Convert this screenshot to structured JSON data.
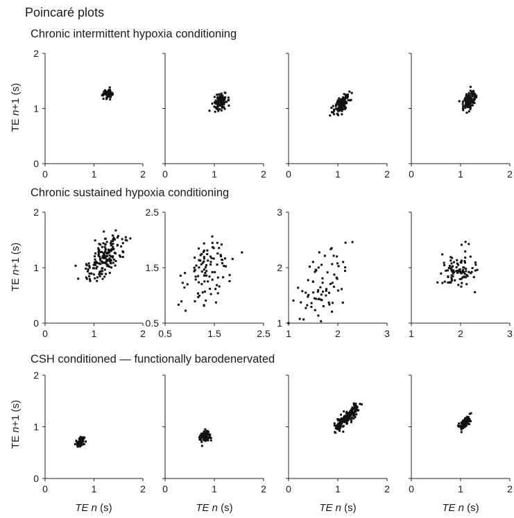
{
  "figure": {
    "title": "Poincaré plots",
    "rows": [
      {
        "title": "Chronic intermittent hypoxia conditioning"
      },
      {
        "title": "Chronic sustained hypoxia conditioning"
      },
      {
        "title": "CSH conditioned — functionally barodenervated"
      }
    ],
    "ylabel": {
      "pre": "TE ",
      "var": "n",
      "post": "+1 (s)"
    },
    "xlabel": {
      "pre": "",
      "var": "TE",
      "mid": " ",
      "var2": "n",
      "post": " (s)"
    }
  },
  "chart_data": [
    {
      "row": 0,
      "col": 0,
      "type": "scatter",
      "xlim": [
        0,
        2
      ],
      "ylim": [
        0,
        2
      ],
      "xticks": [
        "0",
        "1",
        "2"
      ],
      "yticks": [
        "0",
        "1",
        "2"
      ],
      "n_points": 60,
      "cx": 1.28,
      "cy": 1.27,
      "sx": 0.05,
      "sy": 0.05,
      "r": 0.3
    },
    {
      "row": 0,
      "col": 1,
      "type": "scatter",
      "xlim": [
        0,
        2
      ],
      "ylim": [
        0,
        2
      ],
      "xticks": [
        "0",
        "1",
        "2"
      ],
      "yticks": [],
      "n_points": 110,
      "cx": 1.12,
      "cy": 1.12,
      "sx": 0.07,
      "sy": 0.07,
      "r": 0.3
    },
    {
      "row": 0,
      "col": 2,
      "type": "scatter",
      "xlim": [
        0,
        2
      ],
      "ylim": [
        0,
        2
      ],
      "xticks": [
        "0",
        "1",
        "2"
      ],
      "yticks": [],
      "n_points": 110,
      "cx": 1.07,
      "cy": 1.08,
      "sx": 0.08,
      "sy": 0.09,
      "r": 0.6
    },
    {
      "row": 0,
      "col": 3,
      "type": "scatter",
      "xlim": [
        0,
        2
      ],
      "ylim": [
        0,
        2
      ],
      "xticks": [
        "0",
        "1",
        "2"
      ],
      "yticks": [],
      "n_points": 120,
      "cx": 1.18,
      "cy": 1.17,
      "sx": 0.07,
      "sy": 0.09,
      "r": 0.4
    },
    {
      "row": 1,
      "col": 0,
      "type": "scatter",
      "xlim": [
        0,
        2
      ],
      "ylim": [
        0,
        2
      ],
      "xticks": [
        "0",
        "1",
        "2"
      ],
      "yticks": [
        "0",
        "1",
        "2"
      ],
      "n_points": 170,
      "cx": 1.22,
      "cy": 1.18,
      "sx": 0.2,
      "sy": 0.2,
      "r": 0.55
    },
    {
      "row": 1,
      "col": 1,
      "type": "scatter",
      "xlim": [
        0.5,
        2.5
      ],
      "ylim": [
        0.5,
        2.5
      ],
      "xticks": [
        "0.5",
        "1.5",
        "2.5"
      ],
      "yticks": [
        "0.5",
        "1.5",
        "2.5"
      ],
      "n_points": 95,
      "cx": 1.35,
      "cy": 1.45,
      "sx": 0.25,
      "sy": 0.3,
      "r": 0.35
    },
    {
      "row": 1,
      "col": 2,
      "type": "scatter",
      "xlim": [
        1,
        3
      ],
      "ylim": [
        1,
        3
      ],
      "xticks": [
        "1",
        "2",
        "3"
      ],
      "yticks": [
        "1",
        "2",
        "3"
      ],
      "n_points": 75,
      "cx": 1.7,
      "cy": 1.7,
      "sx": 0.3,
      "sy": 0.32,
      "r": 0.5
    },
    {
      "row": 1,
      "col": 3,
      "type": "scatter",
      "xlim": [
        1,
        3
      ],
      "ylim": [
        1,
        3
      ],
      "xticks": [
        "1",
        "2",
        "3"
      ],
      "yticks": [],
      "n_points": 95,
      "cx": 1.95,
      "cy": 1.95,
      "sx": 0.17,
      "sy": 0.17,
      "r": 0.1
    },
    {
      "row": 2,
      "col": 0,
      "type": "scatter",
      "xlim": [
        0,
        2
      ],
      "ylim": [
        0,
        2
      ],
      "xticks": [
        "0",
        "1",
        "2"
      ],
      "yticks": [
        "0",
        "1",
        "2"
      ],
      "n_points": 55,
      "cx": 0.73,
      "cy": 0.72,
      "sx": 0.04,
      "sy": 0.05,
      "r": 0.3
    },
    {
      "row": 2,
      "col": 1,
      "type": "scatter",
      "xlim": [
        0,
        2
      ],
      "ylim": [
        0,
        2
      ],
      "xticks": [
        "0",
        "1",
        "2"
      ],
      "yticks": [],
      "n_points": 90,
      "cx": 0.82,
      "cy": 0.81,
      "sx": 0.05,
      "sy": 0.05,
      "r": 0.2
    },
    {
      "row": 2,
      "col": 2,
      "type": "scatter",
      "xlim": [
        0,
        2
      ],
      "ylim": [
        0,
        2
      ],
      "xticks": [
        "0",
        "1",
        "2"
      ],
      "yticks": [],
      "n_points": 200,
      "cx": 1.18,
      "cy": 1.18,
      "sx": 0.12,
      "sy": 0.12,
      "r": 0.88
    },
    {
      "row": 2,
      "col": 3,
      "type": "scatter",
      "xlim": [
        0,
        2
      ],
      "ylim": [
        0,
        2
      ],
      "xticks": [
        "0",
        "1",
        "2"
      ],
      "yticks": [],
      "n_points": 90,
      "cx": 1.08,
      "cy": 1.07,
      "sx": 0.06,
      "sy": 0.07,
      "r": 0.75
    }
  ]
}
